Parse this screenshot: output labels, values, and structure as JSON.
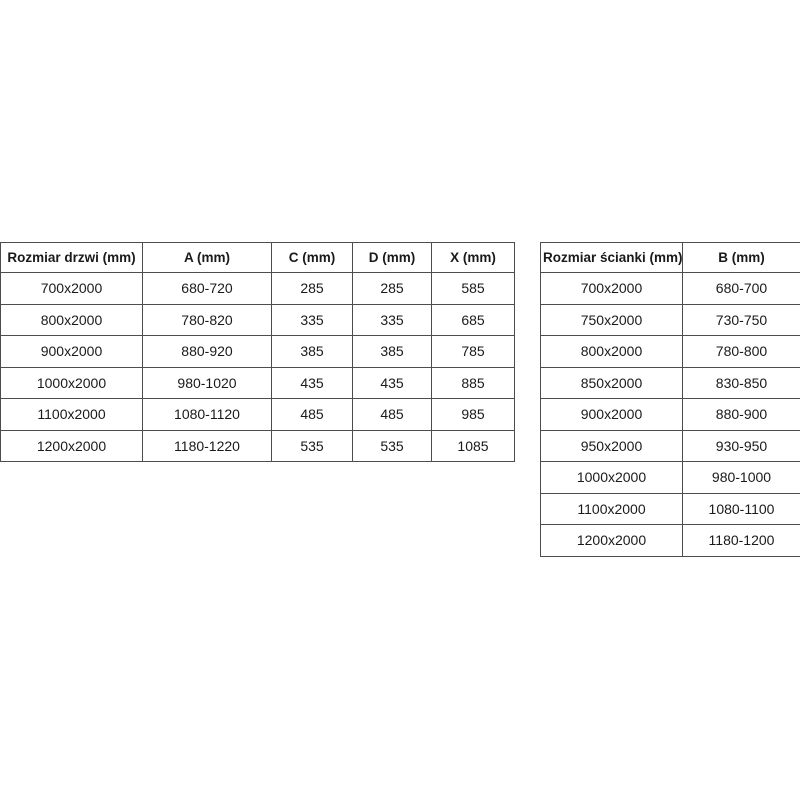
{
  "page": {
    "background_color": "#ffffff",
    "border_color": "#4d4d4d",
    "text_color": "#1a1a1a"
  },
  "tables": [
    {
      "name": "door-sizes",
      "headers": [
        "Rozmiar drzwi (mm)",
        "A (mm)",
        "C (mm)",
        "D (mm)",
        "X (mm)"
      ],
      "rows": [
        [
          "700x2000",
          "680-720",
          "285",
          "285",
          "585"
        ],
        [
          "800x2000",
          "780-820",
          "335",
          "335",
          "685"
        ],
        [
          "900x2000",
          "880-920",
          "385",
          "385",
          "785"
        ],
        [
          "1000x2000",
          "980-1020",
          "435",
          "435",
          "885"
        ],
        [
          "1100x2000",
          "1080-1120",
          "485",
          "485",
          "985"
        ],
        [
          "1200x2000",
          "1180-1220",
          "535",
          "535",
          "1085"
        ]
      ]
    },
    {
      "name": "wall-sizes",
      "headers": [
        "Rozmiar ścianki (mm)",
        "B (mm)"
      ],
      "rows": [
        [
          "700x2000",
          "680-700"
        ],
        [
          "750x2000",
          "730-750"
        ],
        [
          "800x2000",
          "780-800"
        ],
        [
          "850x2000",
          "830-850"
        ],
        [
          "900x2000",
          "880-900"
        ],
        [
          "950x2000",
          "930-950"
        ],
        [
          "1000x2000",
          "980-1000"
        ],
        [
          "1100x2000",
          "1080-1100"
        ],
        [
          "1200x2000",
          "1180-1200"
        ]
      ]
    }
  ]
}
